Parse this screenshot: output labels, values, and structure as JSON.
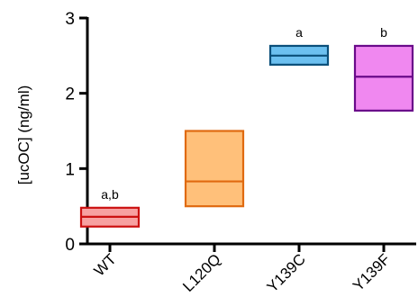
{
  "chart_data": {
    "type": "box",
    "xlabel": "",
    "ylabel": "[ucOC] (ng/ml)",
    "ylim": [
      0,
      3
    ],
    "yticks": [
      "0",
      "1",
      "2",
      "3"
    ],
    "grid": false,
    "categories": [
      "WT",
      "L120Q",
      "Y139C",
      "Y139F"
    ],
    "boxes": [
      {
        "category": "WT",
        "low": 0.23,
        "median": 0.36,
        "high": 0.48,
        "fill": "#f7a1a1",
        "stroke": "#cc1111",
        "annotation": "a,b"
      },
      {
        "category": "L120Q",
        "low": 0.5,
        "median": 0.83,
        "high": 1.5,
        "fill": "#ffc07a",
        "stroke": "#e06a10",
        "annotation": ""
      },
      {
        "category": "Y139C",
        "low": 2.38,
        "median": 2.5,
        "high": 2.63,
        "fill": "#6cc0f0",
        "stroke": "#0a4f7a",
        "annotation": "a"
      },
      {
        "category": "Y139F",
        "low": 1.77,
        "median": 2.22,
        "high": 2.63,
        "fill": "#f088f0",
        "stroke": "#6a0a8a",
        "annotation": "b"
      }
    ]
  }
}
